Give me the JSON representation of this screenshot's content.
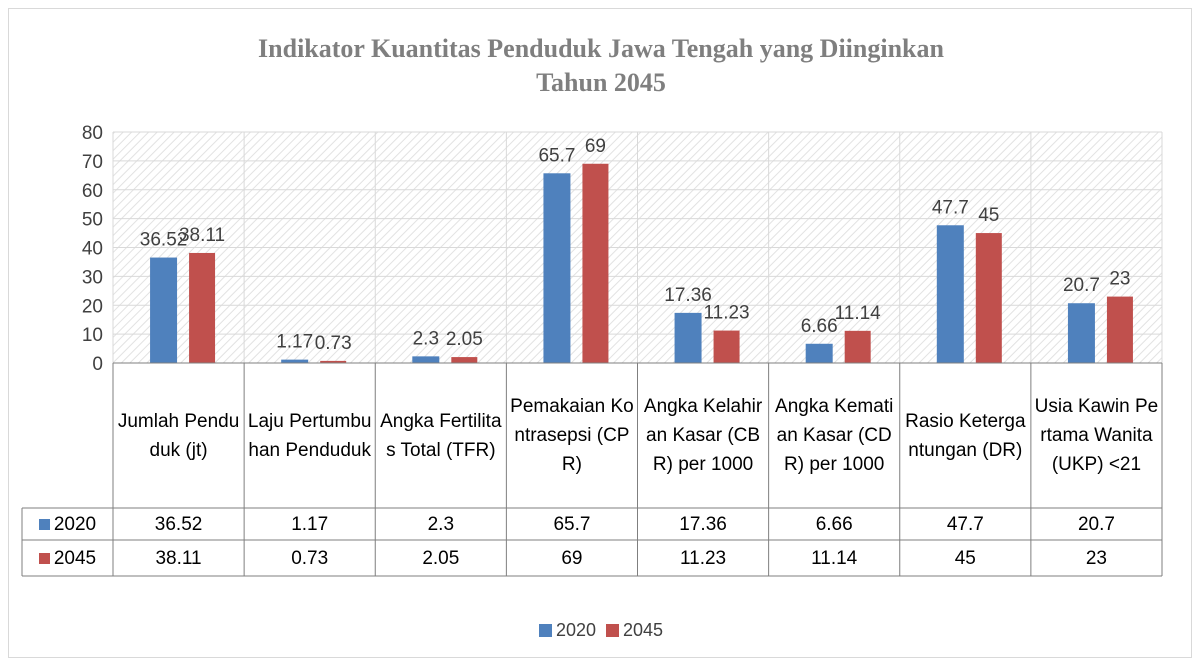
{
  "chart_data": {
    "type": "bar",
    "title": [
      "Indikator Kuantitas Penduduk Jawa Tengah yang Diinginkan",
      "Tahun 2045"
    ],
    "categories": [
      "Jumlah Penduduk (jt)",
      "Laju Pertumbuhan Penduduk",
      "Angka Fertilitas Total (TFR)",
      "Pemakaian Kontrasepsi (CPR)",
      "Angka Kelahiran Kasar (CBR) per 1000",
      "Angka Kematian Kasar (CDR) per 1000",
      "Rasio Ketergantungan (DR)",
      "Usia Kawin Pertama Wanita (UKP) <21"
    ],
    "series": [
      {
        "name": "2020",
        "color": "#4f81bd",
        "values": [
          36.52,
          1.17,
          2.3,
          65.7,
          17.36,
          6.66,
          47.7,
          20.7
        ]
      },
      {
        "name": "2045",
        "color": "#c0504d",
        "values": [
          38.11,
          0.73,
          2.05,
          69,
          11.23,
          11.14,
          45,
          23
        ]
      }
    ],
    "ylim": [
      0,
      80
    ],
    "yticks": [
      0,
      10,
      20,
      30,
      40,
      50,
      60,
      70,
      80
    ],
    "grid": true,
    "legend": "bottom"
  }
}
